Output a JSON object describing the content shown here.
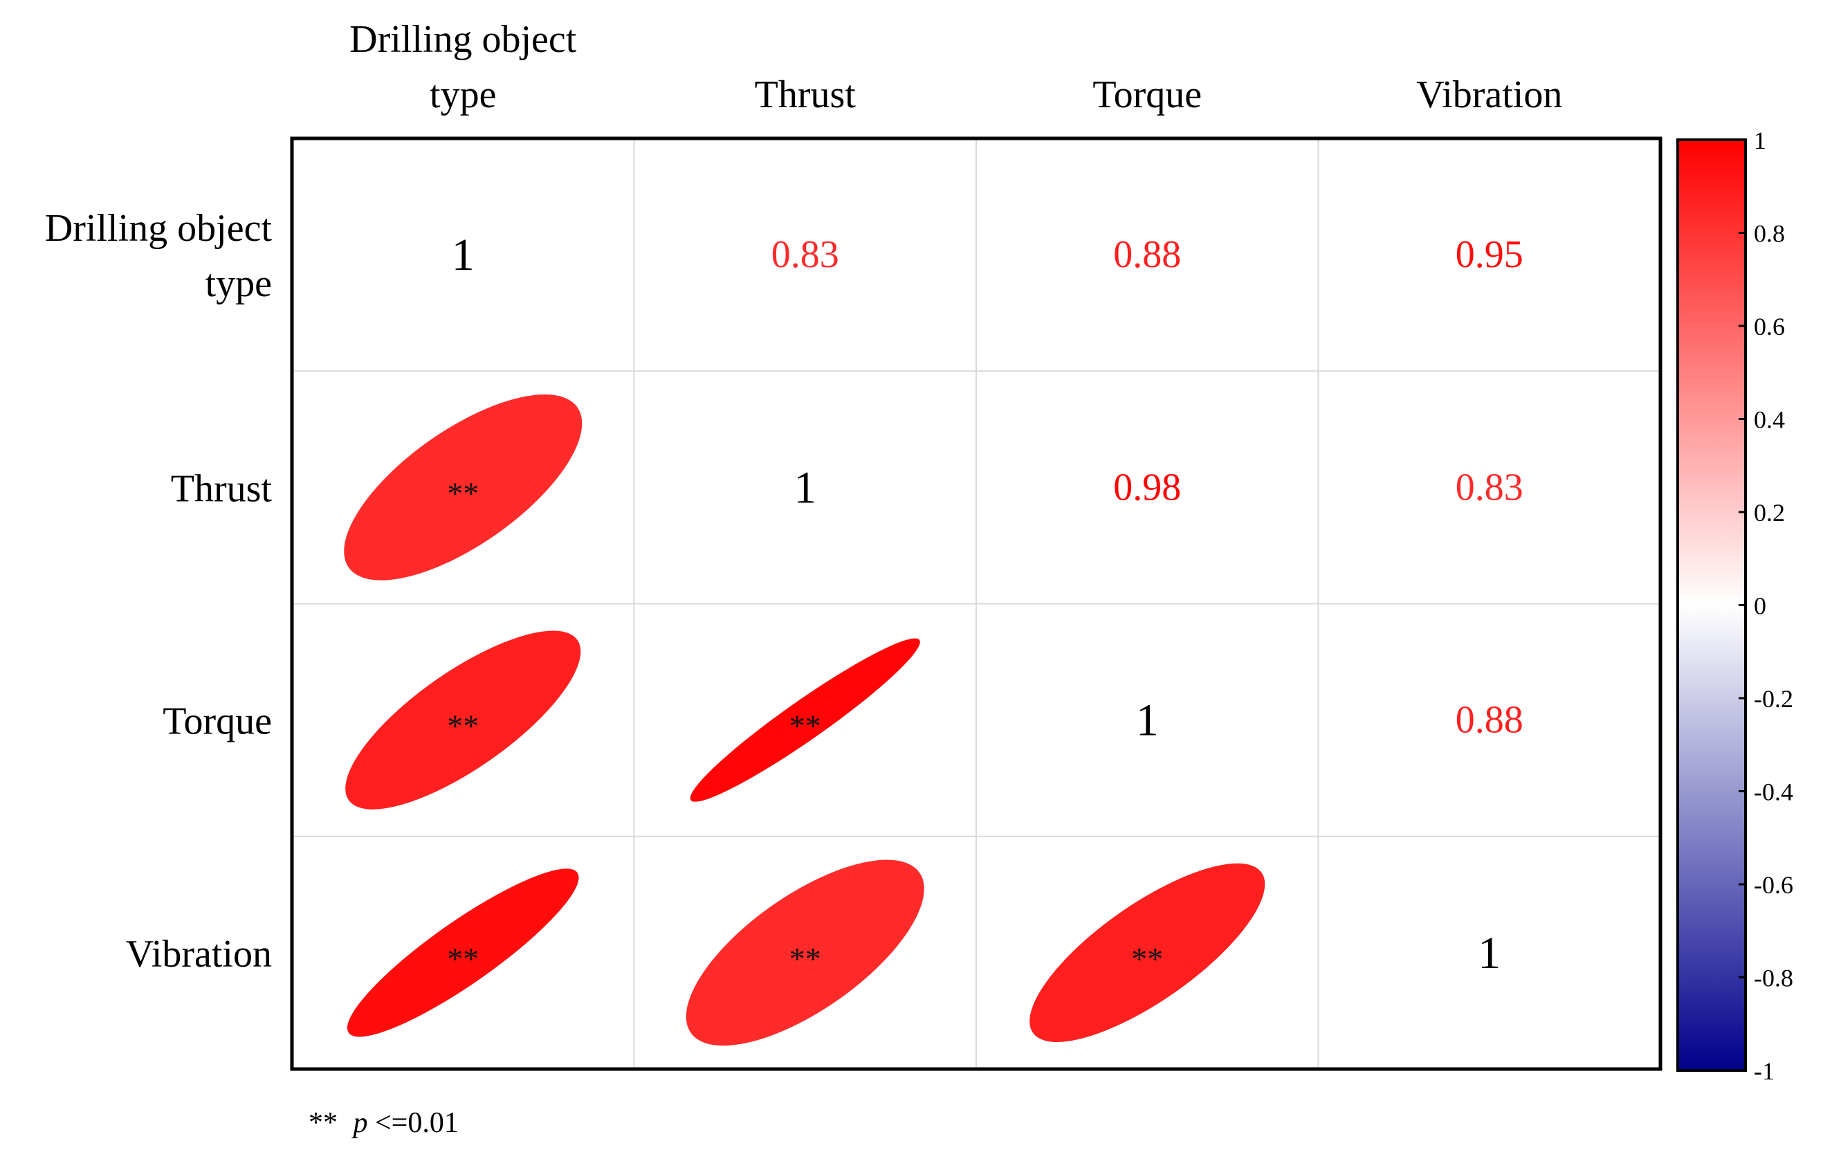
{
  "chart_data": {
    "type": "heatmap",
    "variables": [
      "Drilling object type",
      "Thrust",
      "Torque",
      "Vibration"
    ],
    "matrix": [
      [
        1,
        0.83,
        0.88,
        0.95
      ],
      [
        0.83,
        1,
        0.98,
        0.83
      ],
      [
        0.88,
        0.98,
        1,
        0.88
      ],
      [
        0.95,
        0.83,
        0.88,
        1
      ]
    ],
    "significance": [
      [
        "",
        "",
        "",
        ""
      ],
      [
        "**",
        "",
        "",
        ""
      ],
      [
        "**",
        "**",
        "",
        ""
      ],
      [
        "**",
        "**",
        "**",
        ""
      ]
    ],
    "upper_triangle": "values",
    "lower_triangle": "ellipses",
    "colorbar": {
      "min": -1,
      "max": 1,
      "ticks": [
        "1",
        "0.8",
        "0.6",
        "0.4",
        "0.2",
        "0",
        "-0.2",
        "-0.4",
        "-0.6",
        "-0.8",
        "-1"
      ],
      "colors": {
        "low": "#00008b",
        "mid": "#ffffff",
        "high": "#ff0000"
      }
    },
    "footnote": {
      "marker": "**",
      "symbol": "p",
      "text": "<=0.01"
    }
  }
}
